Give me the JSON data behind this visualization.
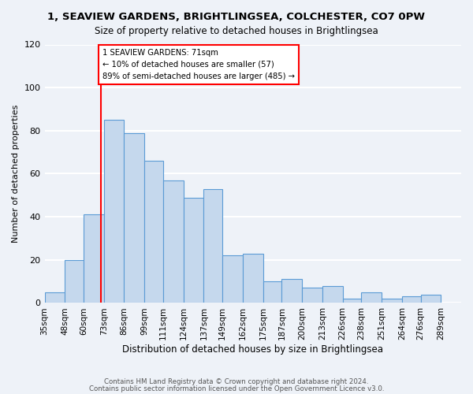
{
  "title": "1, SEAVIEW GARDENS, BRIGHTLINGSEA, COLCHESTER, CO7 0PW",
  "subtitle": "Size of property relative to detached houses in Brightlingsea",
  "xlabel": "Distribution of detached houses by size in Brightlingsea",
  "ylabel": "Number of detached properties",
  "bin_labels": [
    "35sqm",
    "48sqm",
    "60sqm",
    "73sqm",
    "86sqm",
    "99sqm",
    "111sqm",
    "124sqm",
    "137sqm",
    "149sqm",
    "162sqm",
    "175sqm",
    "187sqm",
    "200sqm",
    "213sqm",
    "226sqm",
    "238sqm",
    "251sqm",
    "264sqm",
    "276sqm",
    "289sqm"
  ],
  "bin_edges": [
    35,
    48,
    60,
    73,
    86,
    99,
    111,
    124,
    137,
    149,
    162,
    175,
    187,
    200,
    213,
    226,
    238,
    251,
    264,
    276,
    289
  ],
  "bar_heights": [
    5,
    20,
    41,
    85,
    79,
    66,
    57,
    49,
    53,
    22,
    23,
    10,
    11,
    7,
    8,
    2,
    5,
    2,
    3,
    4
  ],
  "bar_color": "#c5d8ed",
  "bar_edge_color": "#5b9bd5",
  "vline_x": 71,
  "vline_color": "red",
  "annotation_line1": "1 SEAVIEW GARDENS: 71sqm",
  "annotation_line2": "← 10% of detached houses are smaller (57)",
  "annotation_line3": "89% of semi-detached houses are larger (485) →",
  "annotation_box_color": "red",
  "annotation_box_facecolor": "white",
  "ylim": [
    0,
    120
  ],
  "yticks": [
    0,
    20,
    40,
    60,
    80,
    100,
    120
  ],
  "footer1": "Contains HM Land Registry data © Crown copyright and database right 2024.",
  "footer2": "Contains public sector information licensed under the Open Government Licence v3.0.",
  "bg_color": "#eef2f8",
  "plot_bg_color": "#eef2f8",
  "grid_color": "white"
}
